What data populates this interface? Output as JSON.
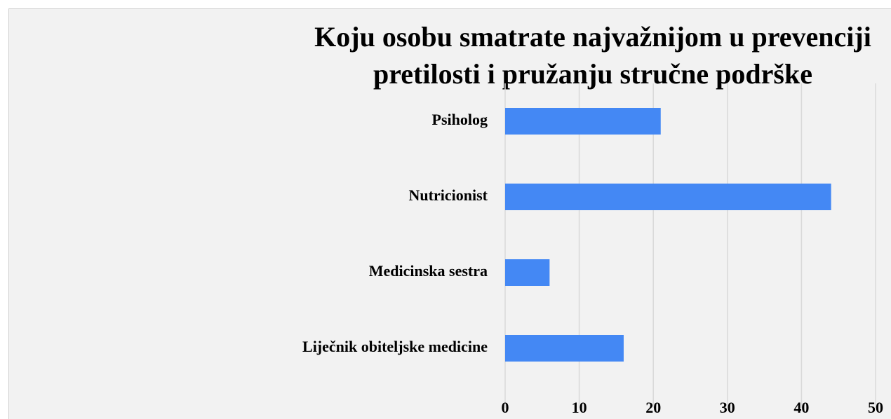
{
  "chart_data": {
    "type": "bar",
    "orientation": "horizontal",
    "title": [
      "Koju osobu smatrate najvažnijom u prevenciji",
      "pretilosti i pružanju stručne podrške"
    ],
    "categories": [
      "Psiholog",
      "Nutricionist",
      "Medicinska sestra",
      "Liječnik obiteljske medicine"
    ],
    "values": [
      21,
      44,
      6,
      16
    ],
    "color": "#4488f4",
    "xlim": [
      0,
      50
    ],
    "xticks": [
      0,
      10,
      20,
      30,
      40,
      50
    ],
    "grid": true
  }
}
